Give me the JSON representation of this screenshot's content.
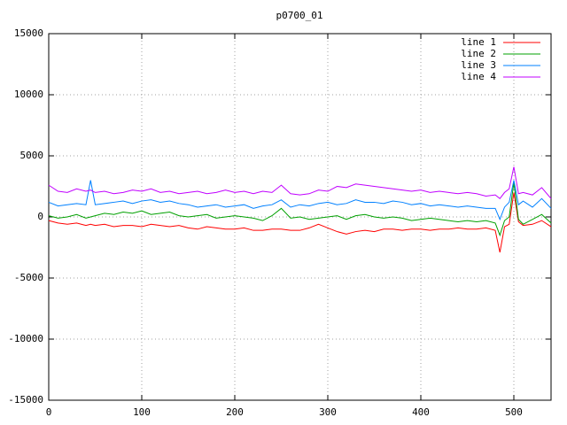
{
  "chart_data": {
    "type": "line",
    "title": "p0700_01",
    "x": [
      0,
      10,
      20,
      30,
      40,
      45,
      50,
      60,
      70,
      80,
      90,
      100,
      110,
      120,
      130,
      140,
      150,
      160,
      170,
      180,
      190,
      200,
      210,
      220,
      230,
      240,
      250,
      260,
      270,
      280,
      290,
      300,
      310,
      320,
      330,
      340,
      350,
      360,
      370,
      380,
      390,
      400,
      410,
      420,
      430,
      440,
      450,
      460,
      470,
      480,
      485,
      490,
      495,
      500,
      505,
      510,
      520,
      530,
      540
    ],
    "series": [
      {
        "name": "line 1",
        "color": "#ff0000",
        "values": [
          -300,
          -500,
          -600,
          -500,
          -700,
          -600,
          -700,
          -600,
          -800,
          -700,
          -700,
          -800,
          -600,
          -700,
          -800,
          -700,
          -900,
          -1000,
          -800,
          -900,
          -1000,
          -1000,
          -900,
          -1100,
          -1100,
          -1000,
          -1000,
          -1100,
          -1100,
          -900,
          -600,
          -900,
          -1200,
          -1400,
          -1200,
          -1100,
          -1200,
          -1000,
          -1000,
          -1100,
          -1000,
          -1000,
          -1100,
          -1000,
          -1000,
          -900,
          -1000,
          -1000,
          -900,
          -1100,
          -2900,
          -800,
          -600,
          2000,
          -400,
          -700,
          -600,
          -300,
          -800
        ]
      },
      {
        "name": "line 2",
        "color": "#00a000",
        "values": [
          100,
          -100,
          0,
          200,
          -100,
          0,
          100,
          300,
          200,
          400,
          300,
          500,
          200,
          300,
          400,
          100,
          0,
          100,
          200,
          -100,
          0,
          100,
          0,
          -100,
          -300,
          100,
          700,
          -100,
          0,
          -200,
          -100,
          0,
          100,
          -200,
          100,
          200,
          0,
          -100,
          0,
          -100,
          -300,
          -200,
          -100,
          -200,
          -300,
          -400,
          -300,
          -400,
          -300,
          -500,
          -1500,
          -300,
          0,
          2800,
          -200,
          -600,
          -200,
          200,
          -500
        ]
      },
      {
        "name": "line 3",
        "color": "#0080ff",
        "values": [
          1200,
          900,
          1000,
          1100,
          1000,
          3000,
          1000,
          1100,
          1200,
          1300,
          1100,
          1300,
          1400,
          1200,
          1300,
          1100,
          1000,
          800,
          900,
          1000,
          800,
          900,
          1000,
          700,
          900,
          1000,
          1400,
          800,
          1000,
          900,
          1100,
          1200,
          1000,
          1100,
          1400,
          1200,
          1200,
          1100,
          1300,
          1200,
          1000,
          1100,
          900,
          1000,
          900,
          800,
          900,
          800,
          700,
          700,
          -200,
          800,
          1200,
          3000,
          1000,
          1300,
          800,
          1500,
          700
        ]
      },
      {
        "name": "line 4",
        "color": "#c000ff",
        "values": [
          2600,
          2100,
          2000,
          2300,
          2100,
          2200,
          2000,
          2100,
          1900,
          2000,
          2200,
          2100,
          2300,
          2000,
          2100,
          1900,
          2000,
          2100,
          1900,
          2000,
          2200,
          2000,
          2100,
          1900,
          2100,
          2000,
          2600,
          1900,
          1800,
          1900,
          2200,
          2100,
          2500,
          2400,
          2700,
          2600,
          2500,
          2400,
          2300,
          2200,
          2100,
          2200,
          2000,
          2100,
          2000,
          1900,
          2000,
          1900,
          1700,
          1800,
          1500,
          2000,
          2300,
          4100,
          1900,
          2000,
          1800,
          2400,
          1500
        ]
      }
    ],
    "xlim": [
      0,
      540
    ],
    "xticks": [
      0,
      100,
      200,
      300,
      400,
      500
    ],
    "ylim": [
      -15000,
      15000
    ],
    "yticks": [
      -15000,
      -10000,
      -5000,
      0,
      5000,
      10000,
      15000
    ],
    "grid": true,
    "legend": "top-right"
  }
}
